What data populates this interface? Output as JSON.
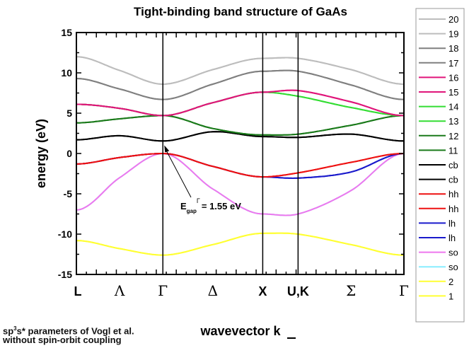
{
  "chart_data": {
    "type": "line",
    "title": "Tight-binding band structure of GaAs",
    "xlabel": "wavevector k",
    "ylabel": "energy (eV)",
    "ylim": [
      -15,
      15
    ],
    "yticks": [
      15,
      10,
      5,
      0,
      -5,
      -10,
      -15
    ],
    "xlim": [
      0,
      3.28
    ],
    "k_points": [
      0,
      0.433,
      0.866,
      1.366,
      1.866,
      2.22,
      2.75,
      3.28
    ],
    "symmetry_labels": [
      {
        "label": "L",
        "k": 0,
        "line": false
      },
      {
        "label": "Λ",
        "k": 0.433,
        "line": false
      },
      {
        "label": "Γ",
        "k": 0.866,
        "line": true
      },
      {
        "label": "Δ",
        "k": 1.366,
        "line": false
      },
      {
        "label": "X",
        "k": 1.866,
        "line": true
      },
      {
        "label": "U,K",
        "k": 2.22,
        "line": true
      },
      {
        "label": "Σ",
        "k": 2.75,
        "line": false
      },
      {
        "label": "Γ",
        "k": 3.28,
        "line": false
      }
    ],
    "series": [
      {
        "name": "1",
        "color": "#ffff33",
        "values": [
          -10.8,
          -11.8,
          -12.6,
          -11.3,
          -9.9,
          -10.0,
          -11.3,
          -12.6
        ]
      },
      {
        "name": "2",
        "color": "#ffff33",
        "values": [
          -10.8,
          -11.8,
          -12.6,
          -11.3,
          -9.9,
          -10.0,
          -11.3,
          -12.6
        ]
      },
      {
        "name": "so",
        "color": "#88eeff",
        "values": [
          -7.0,
          -3.0,
          0,
          -4.4,
          -7.5,
          -7.5,
          -4.6,
          0
        ]
      },
      {
        "name": "so",
        "color": "#ee77ee",
        "values": [
          -7.0,
          -3.0,
          0,
          -4.4,
          -7.5,
          -7.5,
          -4.6,
          0
        ]
      },
      {
        "name": "lh",
        "color": "#1a1acc",
        "values": [
          -1.3,
          -0.5,
          0,
          -1.6,
          -2.9,
          -3.05,
          -2.3,
          0
        ]
      },
      {
        "name": "lh",
        "color": "#1a1acc",
        "values": [
          -1.3,
          -0.5,
          0,
          -1.6,
          -2.9,
          -3.05,
          -2.3,
          0
        ]
      },
      {
        "name": "hh",
        "color": "#ee1111",
        "values": [
          -1.3,
          -0.5,
          0,
          -1.6,
          -2.9,
          -2.4,
          -1.1,
          0
        ]
      },
      {
        "name": "hh",
        "color": "#ee1111",
        "values": [
          -1.3,
          -0.5,
          0,
          -1.6,
          -2.9,
          -2.4,
          -1.1,
          0
        ]
      },
      {
        "name": "cb",
        "color": "#000000",
        "values": [
          1.7,
          2.2,
          1.55,
          2.7,
          2.1,
          2.0,
          2.4,
          1.55
        ]
      },
      {
        "name": "cb",
        "color": "#000000",
        "values": [
          1.7,
          2.2,
          1.55,
          2.7,
          2.1,
          2.0,
          2.4,
          1.55
        ]
      },
      {
        "name": "11",
        "color": "#1a7a1a",
        "values": [
          3.8,
          4.3,
          4.7,
          3.1,
          2.3,
          2.4,
          3.5,
          4.7
        ]
      },
      {
        "name": "12",
        "color": "#1a7a1a",
        "values": [
          3.8,
          4.3,
          4.7,
          3.1,
          2.3,
          2.4,
          3.5,
          4.7
        ]
      },
      {
        "name": "13",
        "color": "#33dd33",
        "values": [
          6.1,
          5.6,
          4.7,
          6.3,
          7.6,
          7.1,
          5.7,
          4.7
        ]
      },
      {
        "name": "14",
        "color": "#33dd33",
        "values": [
          6.1,
          5.6,
          4.7,
          6.3,
          7.6,
          7.1,
          5.7,
          4.7
        ]
      },
      {
        "name": "15",
        "color": "#e0157a",
        "values": [
          6.1,
          5.6,
          4.7,
          6.3,
          7.6,
          7.8,
          6.4,
          4.7
        ]
      },
      {
        "name": "16",
        "color": "#e0157a",
        "values": [
          6.1,
          5.6,
          4.7,
          6.3,
          7.6,
          7.8,
          6.4,
          4.7
        ]
      },
      {
        "name": "17",
        "color": "#808080",
        "values": [
          9.3,
          8.0,
          6.7,
          8.6,
          10.2,
          10.2,
          8.5,
          6.7
        ]
      },
      {
        "name": "18",
        "color": "#808080",
        "values": [
          9.3,
          8.0,
          6.7,
          8.6,
          10.2,
          10.2,
          8.5,
          6.7
        ]
      },
      {
        "name": "19",
        "color": "#bdbdbd",
        "values": [
          12.0,
          10.3,
          8.6,
          10.4,
          11.8,
          11.8,
          10.4,
          8.6
        ]
      },
      {
        "name": "20",
        "color": "#bdbdbd",
        "values": [
          12.0,
          10.3,
          8.6,
          10.4,
          11.8,
          11.8,
          10.4,
          8.6
        ]
      }
    ],
    "legend": {
      "placement": "right",
      "order": [
        "20",
        "19",
        "18",
        "17",
        "16",
        "15",
        "14",
        "13",
        "12",
        "11",
        "cb",
        "cb",
        "hh",
        "hh",
        "lh",
        "lh",
        "so",
        "so",
        "2",
        "1"
      ]
    },
    "annotation": {
      "main": "E",
      "sub": "gap",
      "sup": "Γ",
      "rest": "= 1.55 eV",
      "k": 0.866,
      "energy": 1.55
    }
  },
  "footnotes": {
    "line1_a": "sp",
    "line1_sup": "3",
    "line1_b": "s* parameters of Vogl et al.",
    "line2": "without spin-orbit coupling"
  }
}
